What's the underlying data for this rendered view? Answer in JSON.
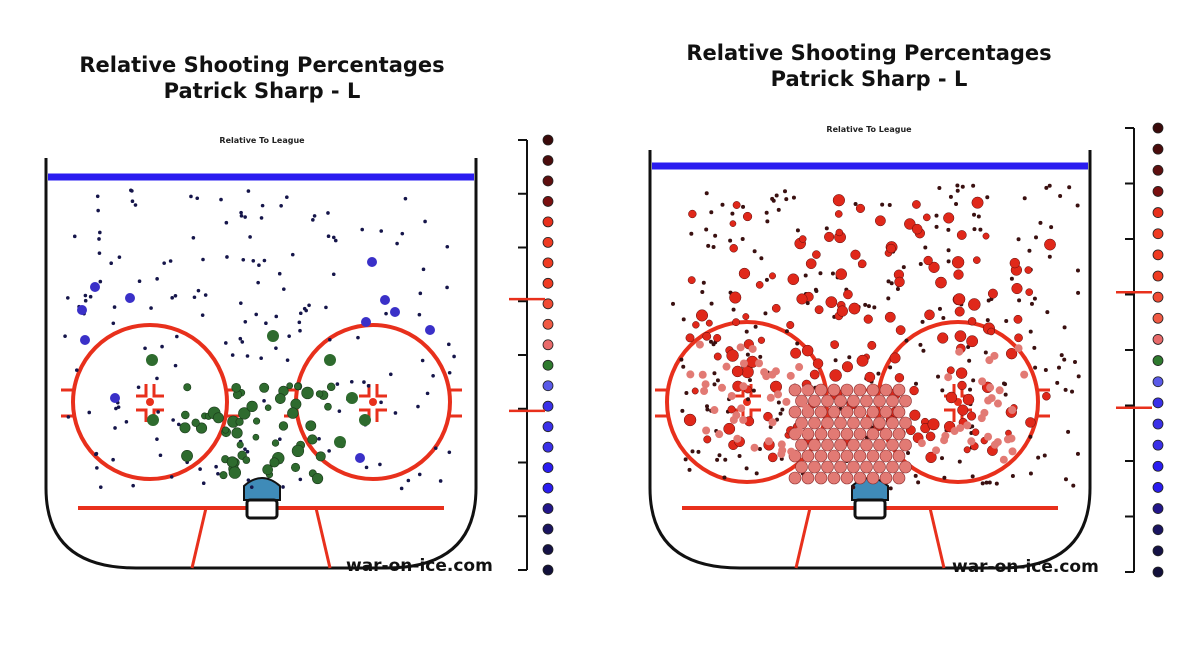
{
  "colors": {
    "rink_outline": "#111111",
    "blue_line": "#2a1cf0",
    "red_line": "#e8301c",
    "crease": "#3f8bb8",
    "legend_scale": [
      "#3a0a0a",
      "#4a0c0c",
      "#5e0f0f",
      "#7a1010",
      "#e8301c",
      "#ef3b22",
      "#ef3b22",
      "#ef3b22",
      "#f04a33",
      "#f05a44",
      "#e86a6a",
      "#2e7a2e",
      "#5a5ae8",
      "#3a30e8",
      "#3a30e8",
      "#3a30e8",
      "#2a1cf0",
      "#2a1cf0",
      "#22168a",
      "#1a1460",
      "#151245",
      "#12103a"
    ]
  },
  "panels": [
    {
      "title_line1": "Relative Shooting Percentages",
      "title_line2": "Patrick Sharp - L",
      "subtitle": "Relative To League",
      "watermark": "war-on-ice.com"
    },
    {
      "title_line1": "Relative Shooting Percentages",
      "title_line2": "Patrick Sharp - L",
      "subtitle": "Relative To League",
      "watermark": "war-on-ice.com"
    }
  ],
  "chart_data": [
    {
      "type": "heatmap",
      "title": "Relative Shooting Percentages",
      "subtitle": "Patrick Sharp - L",
      "note": "Relative To League",
      "dominant_colors": [
        "green",
        "navy",
        "blue"
      ],
      "grid": false
    },
    {
      "type": "heatmap",
      "title": "Relative Shooting Percentages",
      "subtitle": "Patrick Sharp - L",
      "note": "Relative To League",
      "dominant_colors": [
        "red",
        "dark red",
        "light red"
      ],
      "grid": false
    }
  ]
}
